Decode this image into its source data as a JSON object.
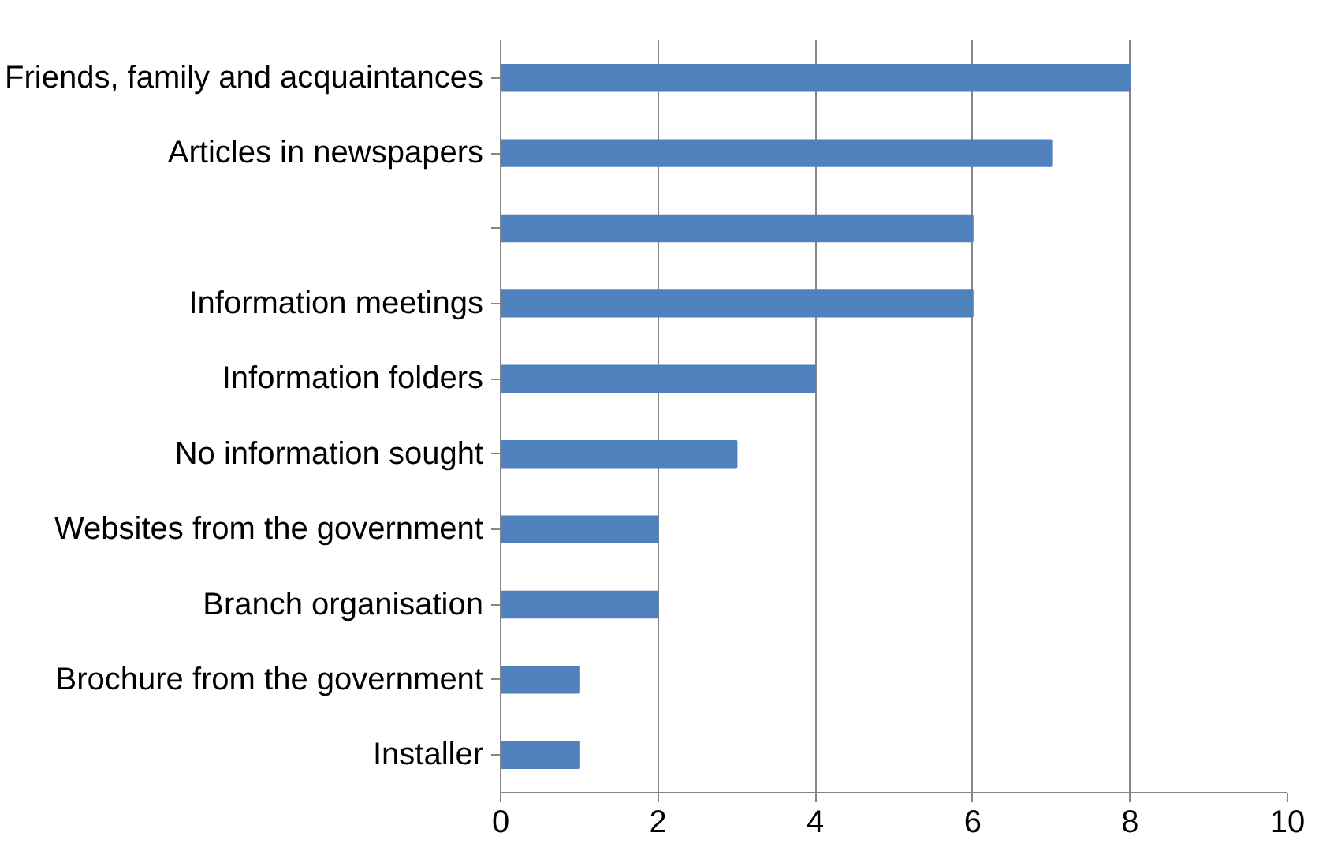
{
  "chart_data": {
    "type": "bar",
    "orientation": "horizontal",
    "categories": [
      "Friends, family and acquaintances",
      "Articles in newspapers",
      null,
      "Information meetings",
      "Information folders",
      "No information sought",
      "Websites from the government",
      "Branch organisation",
      "Brochure from the government",
      "Installer"
    ],
    "values": [
      8,
      7,
      6,
      6,
      4,
      3,
      2,
      2,
      1,
      1
    ],
    "color": "#4f81bd",
    "xlim": [
      0,
      10
    ],
    "xticks": [
      0,
      2,
      4,
      6,
      8,
      10
    ],
    "grid": "x"
  }
}
